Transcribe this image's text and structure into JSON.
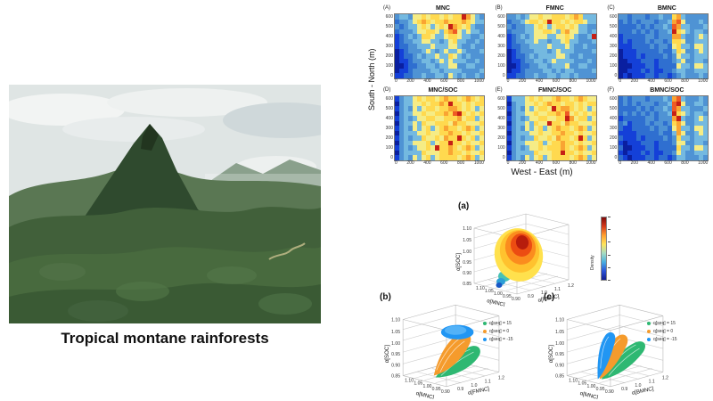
{
  "photo": {
    "caption": "Tropical montane rainforests"
  },
  "chart_data": {
    "type": "composite",
    "heatmaps": {
      "description": "Six spatial heatmaps (jet colormap, blue=low to red=high) of microbial necromass carbon over a 1000 x 600 m forest plot",
      "type": "heatmap",
      "xlabel": "West - East (m)",
      "ylabel": "South - North (m)",
      "xlim": [
        0,
        1000
      ],
      "ylim": [
        0,
        600
      ],
      "xticks": [
        "0",
        "200",
        "400",
        "600",
        "800",
        "1000"
      ],
      "yticks": [
        "600",
        "500",
        "400",
        "300",
        "200",
        "100",
        "0"
      ],
      "value_scale_note": "grid digits 0-9 map to colormap entries low-to-high",
      "colormap": [
        "#0a1fa0",
        "#1440d8",
        "#2f6fd0",
        "#4f93d4",
        "#74b9e0",
        "#f5ec86",
        "#ffd94f",
        "#f9a433",
        "#ef5b25",
        "#c62016"
      ],
      "panels": [
        {
          "letter": "(A)",
          "title": "MNC",
          "grid": [
            "34435565665656697543",
            "23345676566766676544",
            "32344565456597656433",
            "23334556654678545443",
            "12343466544566544334",
            "12334455443456443343",
            "12233444544455433433",
            "01233345434544543334",
            "01223434454465434333",
            "01123344345454443343",
            "00122334434455334433",
            "01123333443444433334",
            "11223343344354343343"
          ]
        },
        {
          "letter": "(B)",
          "title": "FMNC",
          "grid": [
            "33434556556665676444",
            "23345665696656566544",
            "32334456545665654433",
            "23334455665467554434",
            "12343455544556543349",
            "12334454434456443334",
            "12233444454445433433",
            "01233344434544433334",
            "01223434444554334333",
            "01123344345444433343",
            "00122334434445334433",
            "01123333443434433334",
            "11223343344344343333"
          ]
        },
        {
          "letter": "(C)",
          "title": "BMNC",
          "grid": [
            "33233323343367433333",
            "23232333233478533343",
            "22223232334387443334",
            "22232323233496543443",
            "12222233233377433454",
            "12122232332366533444",
            "11122223233256443554",
            "01112222232246533454",
            "01112122223235443444",
            "00111222122234533443",
            "00011122122225443554",
            "00111212112234433444",
            "01011122122123433343"
          ]
        },
        {
          "letter": "(D)",
          "title": "MNC/SOC",
          "grid": [
            "13445656656766567656",
            "03445565667696656566",
            "13435456656677656545",
            "03445565566768965656",
            "13434556655666756645",
            "03445465566657665556",
            "13435456456766567645",
            "03444556556676656556",
            "13434465565766965645",
            "03445556456696656556",
            "13434556596676567645",
            "03444465556676656556",
            "13435456456666567645"
          ]
        },
        {
          "letter": "(E)",
          "title": "FMNC/SOC",
          "grid": [
            "14445656556766567655",
            "03445565676656656566",
            "13435456659677656545",
            "03445565566768565656",
            "13434556655669756645",
            "03445465596657665556",
            "13435456456766567645",
            "03444556556676656556",
            "13434465565766569645",
            "03445556456676656556",
            "13434556566676567645",
            "03444465556696656556",
            "13435456456666567645"
          ]
        },
        {
          "letter": "(F)",
          "title": "BMNC/SOC",
          "grid": [
            "23233323334378433343",
            "23232333233489533443",
            "22223232334387443334",
            "23232323233496543443",
            "12222233233379433454",
            "23122232332367533444",
            "21122223233257443554",
            "11112222232247533454",
            "21112122223236443444",
            "10111222122235533443",
            "20011122122226443554",
            "10111212112235433444",
            "21011122122124433343"
          ]
        }
      ]
    },
    "plots3d": {
      "a": {
        "letter": "(a)",
        "type": "scatter",
        "zlabel": "α[SOC]",
        "xlabel": "α[MNC]",
        "ylabel": "α[FMNC]",
        "zticks": [
          "1.10",
          "1.05",
          "1.00",
          "0.95",
          "0.90",
          "0.85"
        ],
        "xticks": [
          "1.10",
          "1.05",
          "1.00",
          "0.95",
          "0.90"
        ],
        "yticks": [
          "0.9",
          "1.0",
          "1.1",
          "1.2"
        ],
        "zlim": [
          0.85,
          1.1
        ],
        "xlim": [
          0.9,
          1.1
        ],
        "ylim": [
          0.9,
          1.2
        ],
        "colorbar_label": "Density",
        "shape_note": "ellipsoidal point cloud, dense red-orange core near (1.0, 1.05, 1.02), sparse blue tail toward (0.95, 0.95, 0.87)"
      },
      "b": {
        "letter": "(b)",
        "type": "scatter",
        "zlabel": "α[SOC]",
        "xlabel": "α[MNC]",
        "ylabel": "α[FMNC]",
        "zticks": [
          "1.10",
          "1.05",
          "1.00",
          "0.95",
          "0.90",
          "0.85"
        ],
        "xticks": [
          "1.10",
          "1.05",
          "1.00",
          "0.95",
          "0.90"
        ],
        "yticks": [
          "0.9",
          "1.0",
          "1.1",
          "1.2"
        ],
        "zlim": [
          0.85,
          1.1
        ],
        "xlim": [
          0.9,
          1.1
        ],
        "ylim": [
          0.9,
          1.2
        ],
        "legend": [
          {
            "label": "q[seq] = 15",
            "color": "#2eb872"
          },
          {
            "label": "q[seq] = 0",
            "color": "#f59b2c"
          },
          {
            "label": "q[seq] = -15",
            "color": "#2196f3"
          }
        ],
        "shape_note": "three overlapping cone-shaped surfaces: blue cap on top, orange cone middle, green cone lowest"
      },
      "c": {
        "letter": "(c)",
        "type": "scatter",
        "zlabel": "α[SOC]",
        "xlabel": "α[MNC]",
        "ylabel": "α[BMNC]",
        "zticks": [
          "1.10",
          "1.05",
          "1.00",
          "0.95",
          "0.90",
          "0.85"
        ],
        "xticks": [
          "1.10",
          "1.05",
          "1.00",
          "0.95",
          "0.90"
        ],
        "yticks": [
          "0.9",
          "1.0",
          "1.1",
          "1.2"
        ],
        "zlim": [
          0.85,
          1.1
        ],
        "xlim": [
          0.9,
          1.1
        ],
        "ylim": [
          0.9,
          1.2
        ],
        "legend": [
          {
            "label": "q[seq] = 15",
            "color": "#2eb872"
          },
          {
            "label": "q[seq] = 0",
            "color": "#f59b2c"
          },
          {
            "label": "q[seq] = -15",
            "color": "#2196f3"
          }
        ],
        "shape_note": "three adjacent vertical fans: blue left, orange center, green right (widest)"
      }
    }
  }
}
